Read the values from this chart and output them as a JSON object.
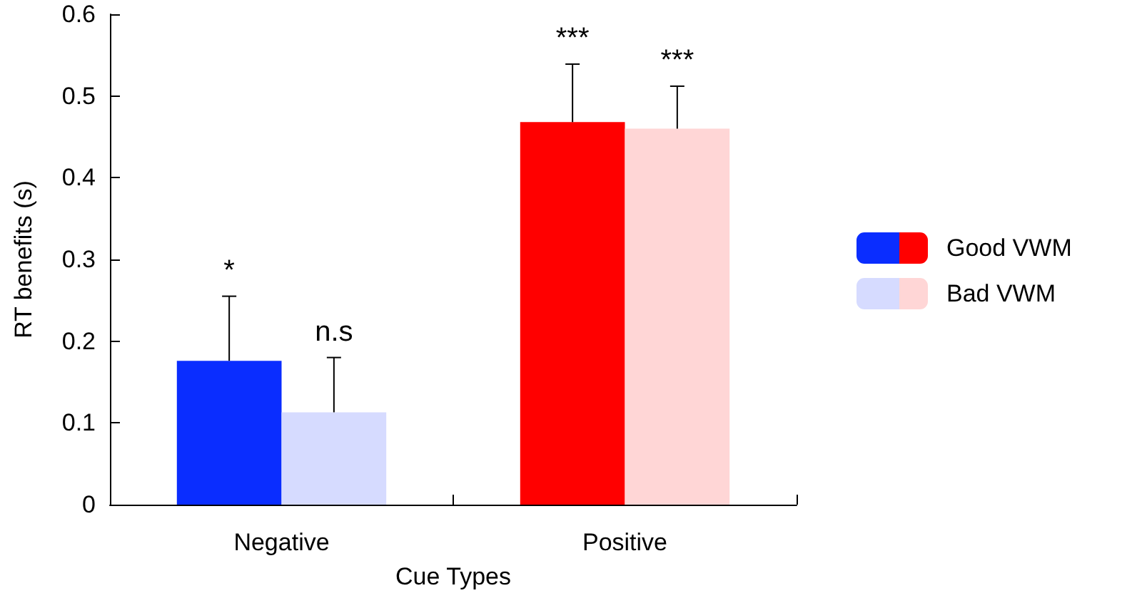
{
  "chart_data": {
    "type": "bar",
    "xlabel": "Cue Types",
    "ylabel": "RT benefits (s)",
    "categories": [
      "Negative",
      "Positive"
    ],
    "series": [
      {
        "name": "Good VWM",
        "colors": [
          "#0a2dff",
          "#ff0000"
        ],
        "values": [
          0.176,
          0.468
        ],
        "errors": [
          0.079,
          0.071
        ]
      },
      {
        "name": "Bad VWM",
        "colors": [
          "#d6dbff",
          "#ffd6d6"
        ],
        "values": [
          0.113,
          0.46
        ],
        "errors": [
          0.067,
          0.052
        ]
      }
    ],
    "ylim": [
      0,
      0.6
    ],
    "yticks": [
      0,
      0.1,
      0.2,
      0.3,
      0.4,
      0.5,
      0.6
    ],
    "grid": false,
    "legend": "right",
    "annotations": [
      "*",
      "n.s",
      "***",
      "***"
    ]
  }
}
